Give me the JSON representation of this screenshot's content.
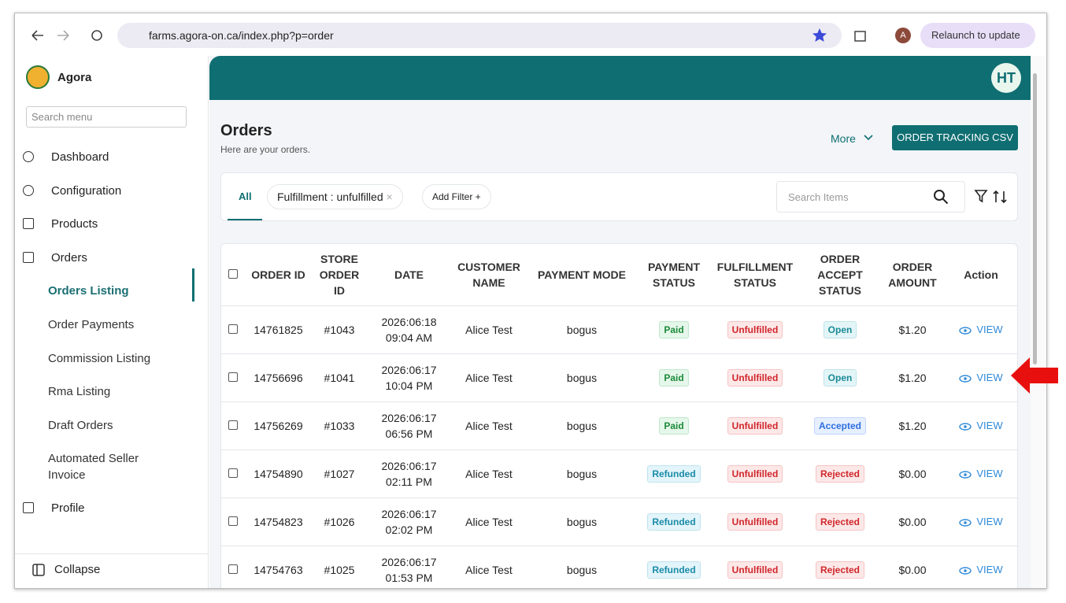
{
  "browser": {
    "url": "farms.agora-on.ca/index.php?p=order",
    "profile": "A",
    "relaunch": "Relaunch to update"
  },
  "sidebar": {
    "brand": "Agora",
    "search_placeholder": "Search menu",
    "items": [
      {
        "label": "Dashboard",
        "level": 1
      },
      {
        "label": "Configuration",
        "level": 1
      },
      {
        "label": "Products",
        "level": 1
      },
      {
        "label": "Orders",
        "level": 1
      },
      {
        "label": "Orders Listing",
        "level": 2,
        "active": true
      },
      {
        "label": "Order Payments",
        "level": 2
      },
      {
        "label": "Commission Listing",
        "level": 2
      },
      {
        "label": "Rma Listing",
        "level": 2
      },
      {
        "label": "Draft Orders",
        "level": 2
      },
      {
        "label": "Automated Seller Invoice",
        "level": 2
      },
      {
        "label": "Profile",
        "level": 1
      }
    ],
    "collapse": "Collapse"
  },
  "header": {
    "avatar": "HT"
  },
  "page": {
    "title": "Orders",
    "subtitle": "Here are your orders.",
    "more": "More",
    "csv_button": "ORDER TRACKING CSV"
  },
  "filters": {
    "tab": "All",
    "chip": "Fulfillment : unfulfilled",
    "add_filter": "Add Filter +",
    "search_placeholder": "Search Items"
  },
  "table": {
    "columns": [
      "ORDER ID",
      "STORE ORDER ID",
      "DATE",
      "CUSTOMER NAME",
      "PAYMENT MODE",
      "PAYMENT STATUS",
      "FULFILLMENT STATUS",
      "ORDER ACCEPT STATUS",
      "ORDER AMOUNT",
      "Action"
    ],
    "action_label": "VIEW",
    "rows": [
      [
        "14761825",
        "#1043",
        "2026:06:18 09:04 AM",
        "Alice Test",
        "bogus",
        "Paid",
        "Unfulfilled",
        "Open",
        "$1.20"
      ],
      [
        "14756696",
        "#1041",
        "2026:06:17 10:04 PM",
        "Alice Test",
        "bogus",
        "Paid",
        "Unfulfilled",
        "Open",
        "$1.20"
      ],
      [
        "14756269",
        "#1033",
        "2026:06:17 06:56 PM",
        "Alice Test",
        "bogus",
        "Paid",
        "Unfulfilled",
        "Accepted",
        "$1.20"
      ],
      [
        "14754890",
        "#1027",
        "2026:06:17 02:11 PM",
        "Alice Test",
        "bogus",
        "Refunded",
        "Unfulfilled",
        "Rejected",
        "$0.00"
      ],
      [
        "14754823",
        "#1026",
        "2026:06:17 02:02 PM",
        "Alice Test",
        "bogus",
        "Refunded",
        "Unfulfilled",
        "Rejected",
        "$0.00"
      ],
      [
        "14754763",
        "#1025",
        "2026:06:17 01:53 PM",
        "Alice Test",
        "bogus",
        "Refunded",
        "Unfulfilled",
        "Rejected",
        "$0.00"
      ]
    ]
  }
}
